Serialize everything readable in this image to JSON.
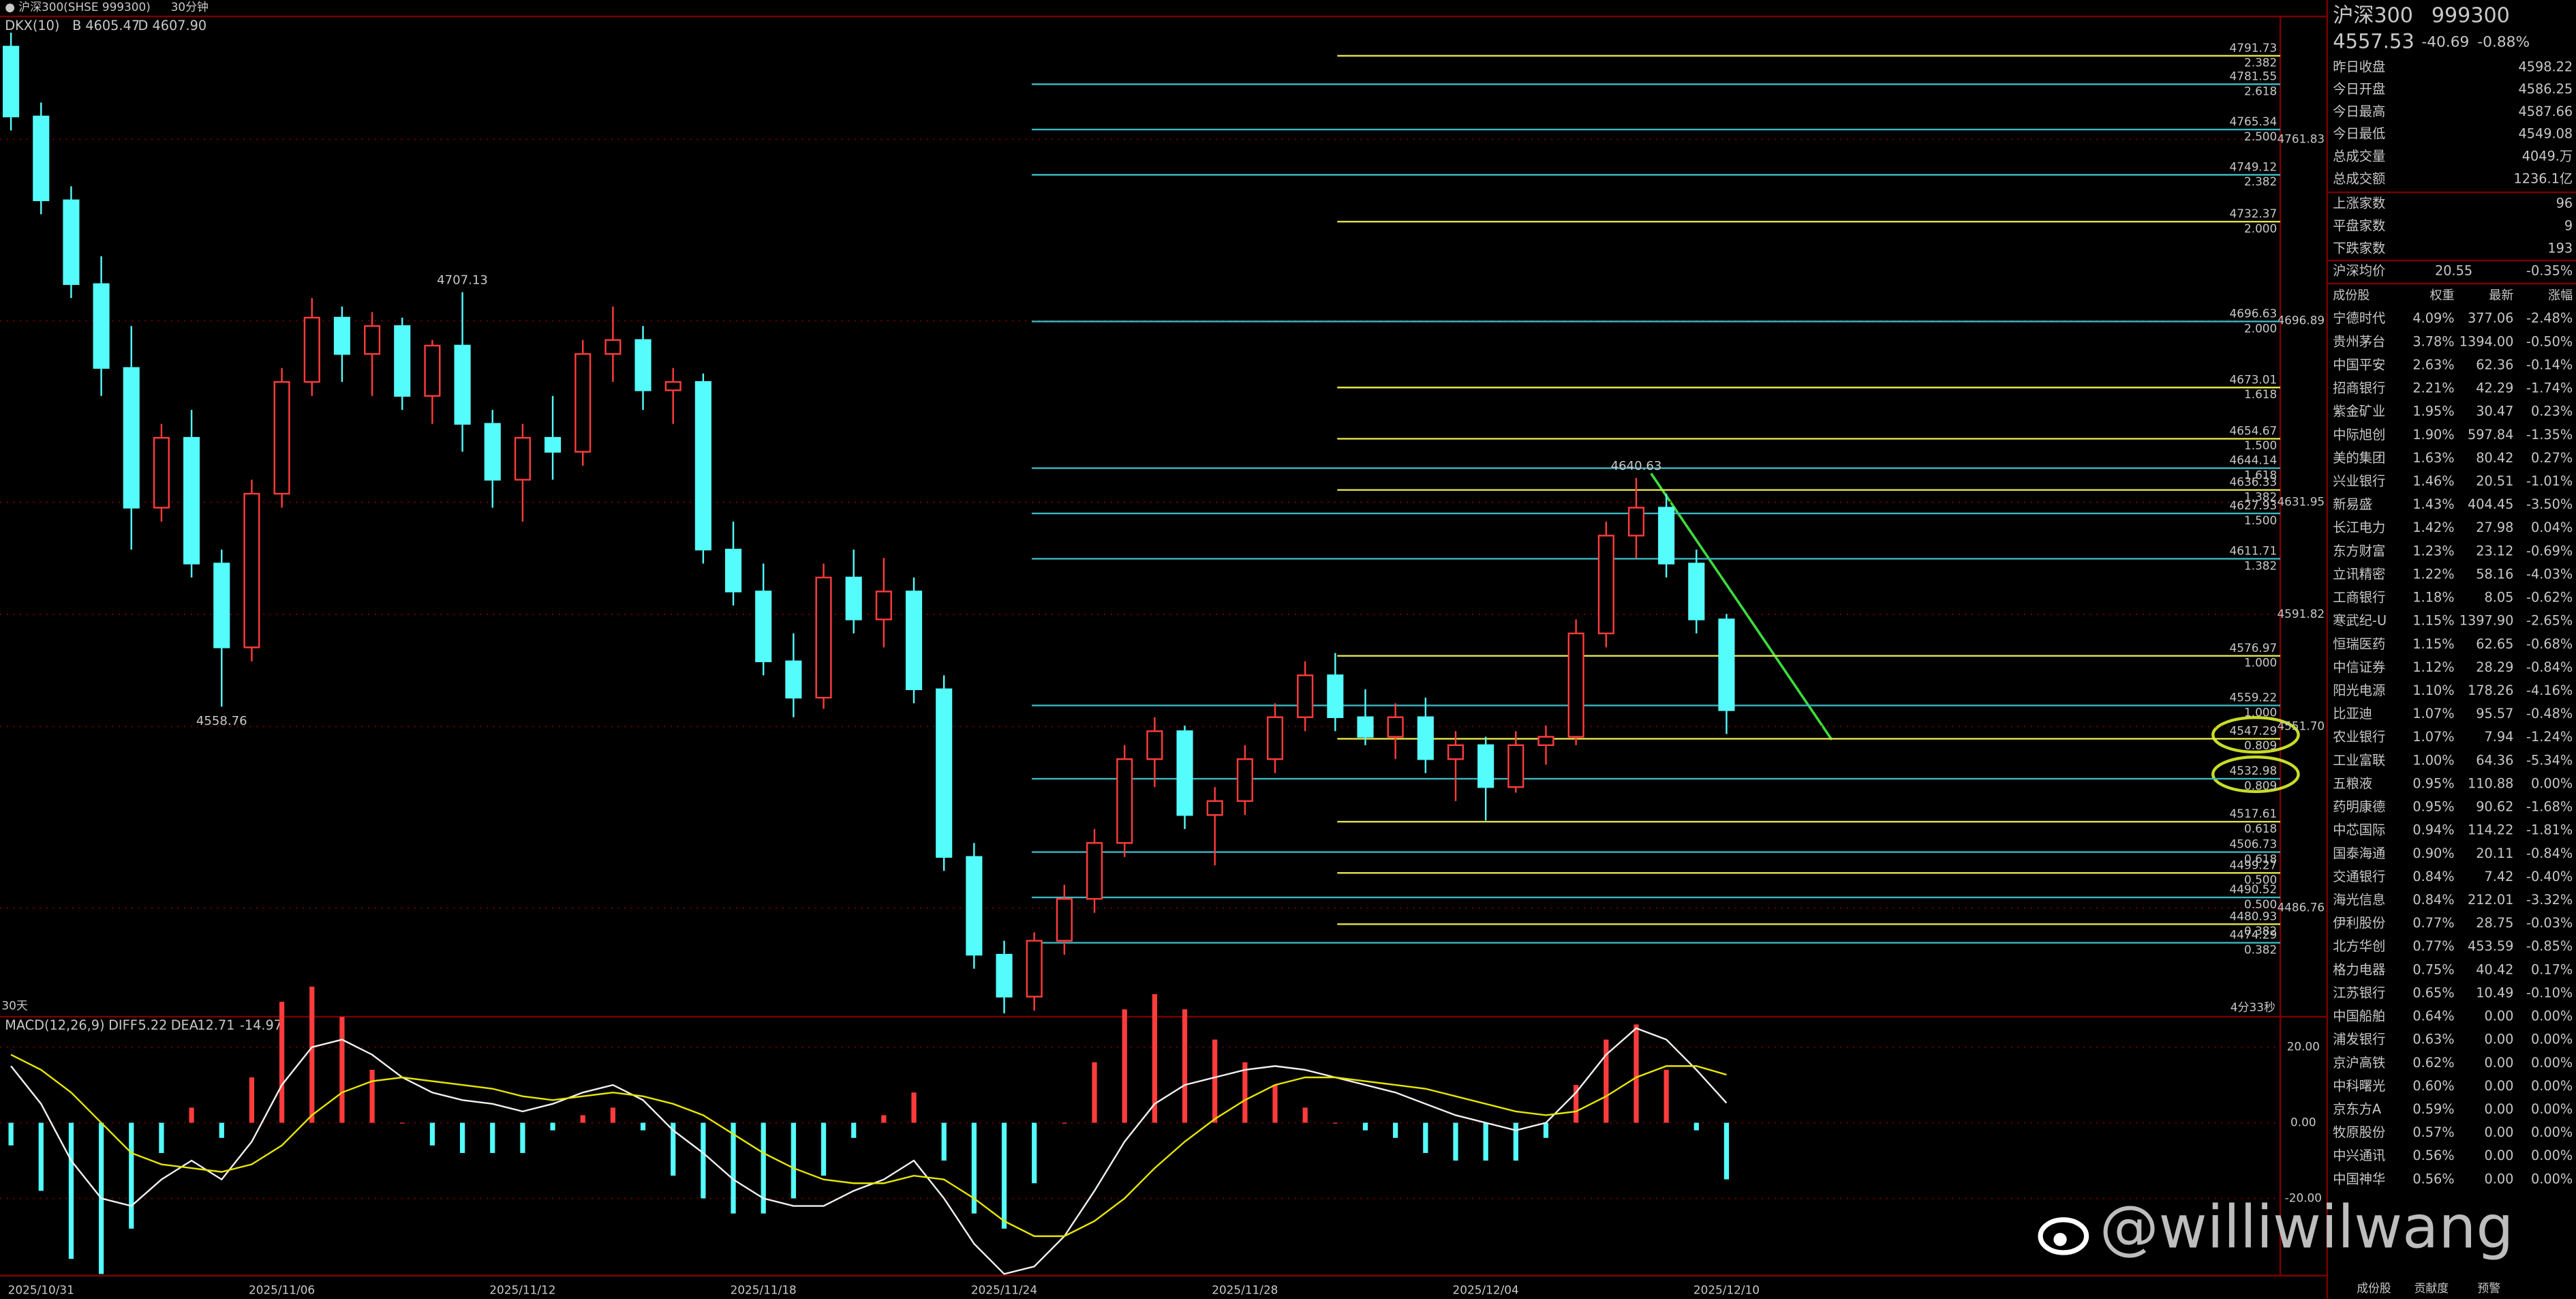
{
  "header": {
    "title": "● 沪深300(SHSE 999300)",
    "period": "30分钟"
  },
  "chart_data": [
    {
      "type": "candlestick",
      "indicator": "DKX(10)",
      "indicator_values": [
        "B 4605.47",
        "D 4607.90"
      ],
      "categories": [
        null,
        "2025/10/31",
        null,
        null,
        null,
        null,
        null,
        null,
        null,
        "2025/11/06",
        null,
        null,
        null,
        null,
        null,
        null,
        null,
        "2025/11/12",
        null,
        null,
        null,
        null,
        null,
        null,
        null,
        "2025/11/18",
        null,
        null,
        null,
        null,
        null,
        null,
        null,
        "2025/11/24",
        null,
        null,
        null,
        null,
        null,
        null,
        null,
        "2025/11/28",
        null,
        null,
        null,
        null,
        null,
        null,
        null,
        "2025/12/04",
        null,
        null,
        null,
        null,
        null,
        null,
        null,
        "2025/12/10"
      ],
      "open": [
        4795,
        4770,
        4740,
        4710,
        4680,
        4630,
        4655,
        4610,
        4580,
        4635,
        4675,
        4698,
        4685,
        4695,
        4670,
        4688,
        4660,
        4640,
        4655,
        4650,
        4685,
        4690,
        4672,
        4675,
        4615,
        4600,
        4575,
        4562,
        4605,
        4590,
        4600,
        4565,
        4505,
        4470,
        4455,
        4475,
        4490,
        4510,
        4540,
        4550,
        4520,
        4525,
        4540,
        4555,
        4570,
        4555,
        4548,
        4555,
        4540,
        4545,
        4530,
        4545,
        4548,
        4585,
        4620,
        4630,
        4610,
        4590
      ],
      "high": [
        4800,
        4775,
        4745,
        4720,
        4695,
        4660,
        4665,
        4615,
        4640,
        4680,
        4705,
        4702,
        4700,
        4698,
        4690,
        4707.13,
        4665,
        4660,
        4670,
        4690,
        4702,
        4695,
        4680,
        4678,
        4625,
        4610,
        4585,
        4610,
        4615,
        4612,
        4605,
        4570,
        4510,
        4475,
        4478,
        4495,
        4515,
        4545,
        4555,
        4552,
        4530,
        4545,
        4560,
        4575,
        4578,
        4565,
        4560,
        4562,
        4550,
        4548,
        4550,
        4552,
        4590,
        4625,
        4640.63,
        4635,
        4615,
        4592
      ],
      "low": [
        4765,
        4735,
        4705,
        4670,
        4615,
        4625,
        4605,
        4558.76,
        4575,
        4630,
        4670,
        4675,
        4670,
        4665,
        4660,
        4650,
        4630,
        4625,
        4640,
        4645,
        4675,
        4665,
        4660,
        4610,
        4595,
        4570,
        4555,
        4558,
        4585,
        4580,
        4560,
        4500,
        4465,
        4449,
        4450,
        4470,
        4485,
        4505,
        4530,
        4515,
        4502,
        4520,
        4535,
        4550,
        4550,
        4545,
        4540,
        4535,
        4525,
        4518,
        4528,
        4538,
        4545,
        4580,
        4612,
        4605,
        4585,
        4549
      ],
      "close": [
        4770,
        4740,
        4710,
        4680,
        4630,
        4655,
        4610,
        4580,
        4635,
        4675,
        4698,
        4685,
        4695,
        4670,
        4688,
        4660,
        4640,
        4655,
        4650,
        4685,
        4690,
        4672,
        4675,
        4615,
        4600,
        4575,
        4562,
        4605,
        4590,
        4600,
        4565,
        4505,
        4470,
        4455,
        4475,
        4490,
        4510,
        4540,
        4550,
        4520,
        4525,
        4540,
        4555,
        4570,
        4555,
        4548,
        4555,
        4540,
        4545,
        4530,
        4545,
        4548,
        4585,
        4620,
        4630,
        4610,
        4590,
        4557.53
      ],
      "up_color": "#ff3c3c",
      "down_color": "#54fcfc",
      "ylim": [
        4448.1,
        4805.8
      ],
      "yticks": [
        4761.83,
        4696.89,
        4631.95,
        4591.82,
        {
          "value": 4551.7,
          "label": "4551.70"
        },
        4486.76
      ],
      "grid": true,
      "fib_sets": [
        {
          "color": "#e6e64a",
          "levels": [
            {
              "value": 4791.73,
              "ratio": "2.382"
            },
            {
              "value": 4732.37,
              "ratio": "2.000"
            },
            {
              "value": 4673.01,
              "ratio": "1.618"
            },
            {
              "value": 4654.67,
              "ratio": "1.500"
            },
            {
              "value": 4636.33,
              "ratio": "1.382"
            },
            {
              "value": 4576.97,
              "ratio": "1.000"
            },
            {
              "value": 4547.29,
              "ratio": "0.809"
            },
            {
              "value": 4517.61,
              "ratio": "0.618"
            },
            {
              "value": 4499.27,
              "ratio": "0.500"
            },
            {
              "value": 4480.93,
              "ratio": "0.382"
            }
          ]
        },
        {
          "color": "#3cb8c0",
          "levels": [
            {
              "value": 4781.55,
              "ratio": "2.618"
            },
            {
              "value": 4765.34,
              "ratio": "2.500"
            },
            {
              "value": 4749.12,
              "ratio": "2.382"
            },
            {
              "value": 4696.63,
              "ratio": "2.000"
            },
            {
              "value": 4644.14,
              "ratio": "1.618"
            },
            {
              "value": 4627.93,
              "ratio": "1.500"
            },
            {
              "value": 4611.71,
              "ratio": "1.382"
            },
            {
              "value": 4559.22,
              "ratio": "1.000"
            },
            {
              "value": 4532.98,
              "ratio": "0.809"
            },
            {
              "value": 4506.73,
              "ratio": "0.618"
            },
            {
              "value": 4490.52,
              "ratio": "0.500"
            },
            {
              "value": 4474.29,
              "ratio": "0.382"
            }
          ]
        }
      ],
      "corner_label": "30天",
      "countdown": "4分33秒"
    },
    {
      "type": "macd",
      "title": "MACD(12,26,9)",
      "series": [
        {
          "name": "DIFF",
          "color": "#f0f0f0",
          "values": [
            15,
            5,
            -10,
            -20,
            -22,
            -15,
            -10,
            -15,
            -5,
            10,
            20,
            22,
            18,
            12,
            8,
            6,
            5,
            3,
            5,
            8,
            10,
            6,
            -2,
            -8,
            -15,
            -20,
            -22,
            -22,
            -18,
            -15,
            -10,
            -20,
            -32,
            -40,
            -38,
            -30,
            -18,
            -5,
            5,
            10,
            12,
            14,
            15,
            14,
            12,
            10,
            8,
            5,
            2,
            0,
            -2,
            0,
            8,
            18,
            25,
            22,
            14,
            5.22
          ]
        },
        {
          "name": "DEA",
          "color": "#e6e600",
          "values": [
            18,
            14,
            8,
            0,
            -8,
            -11,
            -12,
            -13,
            -11,
            -6,
            2,
            8,
            11,
            12,
            11,
            10,
            9,
            7,
            6,
            7,
            8,
            7,
            5,
            2,
            -3,
            -8,
            -12,
            -15,
            -16,
            -16,
            -14,
            -15,
            -20,
            -26,
            -30,
            -30,
            -26,
            -20,
            -12,
            -5,
            1,
            6,
            10,
            12,
            12,
            11,
            10,
            9,
            7,
            5,
            3,
            2,
            3,
            7,
            12,
            15,
            15,
            12.71
          ]
        }
      ],
      "histogram": {
        "up_color": "#ff3c3c",
        "down_color": "#54fcfc",
        "values": [
          -6,
          -18,
          -36,
          -40,
          -28,
          -8,
          4,
          -4,
          12,
          32,
          36,
          28,
          14,
          0,
          -6,
          -8,
          -8,
          -8,
          -2,
          2,
          4,
          -2,
          -14,
          -20,
          -24,
          -24,
          -20,
          -14,
          -4,
          2,
          8,
          -10,
          -24,
          -28,
          -16,
          0,
          16,
          30,
          34,
          30,
          22,
          16,
          10,
          4,
          0,
          -2,
          -4,
          -8,
          -10,
          -10,
          -10,
          -4,
          10,
          22,
          26,
          14,
          -2,
          -14.97
        ]
      },
      "ylim": [
        -40,
        27.39
      ],
      "yticks": [
        {
          "value": 20,
          "label": "20.00"
        },
        {
          "value": 0,
          "label": "0.00"
        },
        {
          "value": -20,
          "label": "-20.00"
        }
      ],
      "grid": true
    }
  ],
  "quote": {
    "name": "沪深300",
    "code": "999300",
    "price": 4557.53,
    "change": -40.69,
    "change_pct": "-0.88%"
  },
  "stats": [
    {
      "label": "昨日收盘",
      "value": "4598.22",
      "color": "#ffffff"
    },
    {
      "label": "今日开盘",
      "value": "4586.25",
      "color": "#00e600"
    },
    {
      "label": "今日最高",
      "value": "4587.66",
      "color": "#00e600"
    },
    {
      "label": "今日最低",
      "value": "4549.08",
      "color": "#00e600"
    },
    {
      "label": "总成交量",
      "value": "4049.万",
      "color": "#e6e600"
    },
    {
      "label": "总成交额",
      "value": "1236.1亿",
      "color": "#e6e600"
    }
  ],
  "breadth": [
    {
      "label": "上涨家数",
      "value": "96"
    },
    {
      "label": "平盘家数",
      "value": "9"
    },
    {
      "label": "下跌家数",
      "value": "193"
    }
  ],
  "average": {
    "label": "沪深均价",
    "value": "20.55",
    "change": "-0.35%"
  },
  "constituents": {
    "columns": [
      "成份股",
      "权重",
      "最新",
      "涨幅"
    ],
    "rows": [
      [
        "宁德时代",
        "4.09%",
        "377.06",
        "-2.48%"
      ],
      [
        "贵州茅台",
        "3.78%",
        "1394.00",
        "-0.50%"
      ],
      [
        "中国平安",
        "2.63%",
        "62.36",
        "-0.14%"
      ],
      [
        "招商银行",
        "2.21%",
        "42.29",
        "-1.74%"
      ],
      [
        "紫金矿业",
        "1.95%",
        "30.47",
        "0.23%"
      ],
      [
        "中际旭创",
        "1.90%",
        "597.84",
        "-1.35%"
      ],
      [
        "美的集团",
        "1.63%",
        "80.42",
        "0.27%"
      ],
      [
        "兴业银行",
        "1.46%",
        "20.51",
        "-1.01%"
      ],
      [
        "新易盛",
        "1.43%",
        "404.45",
        "-3.50%"
      ],
      [
        "长江电力",
        "1.42%",
        "27.98",
        "0.04%"
      ],
      [
        "东方财富",
        "1.23%",
        "23.12",
        "-0.69%"
      ],
      [
        "立讯精密",
        "1.22%",
        "58.16",
        "-4.03%"
      ],
      [
        "工商银行",
        "1.18%",
        "8.05",
        "-0.62%"
      ],
      [
        "寒武纪-U",
        "1.15%",
        "1397.90",
        "-2.65%"
      ],
      [
        "恒瑞医药",
        "1.15%",
        "62.65",
        "-0.68%"
      ],
      [
        "中信证券",
        "1.12%",
        "28.29",
        "-0.84%"
      ],
      [
        "阳光电源",
        "1.10%",
        "178.26",
        "-4.16%"
      ],
      [
        "比亚迪",
        "1.07%",
        "95.57",
        "-0.48%"
      ],
      [
        "农业银行",
        "1.07%",
        "7.94",
        "-1.24%"
      ],
      [
        "工业富联",
        "1.00%",
        "64.36",
        "-5.34%"
      ],
      [
        "五粮液",
        "0.95%",
        "110.88",
        "0.00%"
      ],
      [
        "药明康德",
        "0.95%",
        "90.62",
        "-1.68%"
      ],
      [
        "中芯国际",
        "0.94%",
        "114.22",
        "-1.81%"
      ],
      [
        "国泰海通",
        "0.90%",
        "20.11",
        "-0.84%"
      ],
      [
        "交通银行",
        "0.84%",
        "7.42",
        "-0.40%"
      ],
      [
        "海光信息",
        "0.84%",
        "212.01",
        "-3.32%"
      ],
      [
        "伊利股份",
        "0.77%",
        "28.75",
        "-0.03%"
      ],
      [
        "北方华创",
        "0.77%",
        "453.59",
        "-0.85%"
      ],
      [
        "格力电器",
        "0.75%",
        "40.42",
        "0.17%"
      ],
      [
        "江苏银行",
        "0.65%",
        "10.49",
        "-0.10%"
      ],
      [
        "中国船舶",
        "0.64%",
        "0.00",
        "0.00%"
      ],
      [
        "浦发银行",
        "0.63%",
        "0.00",
        "0.00%"
      ],
      [
        "京沪高铁",
        "0.62%",
        "0.00",
        "0.00%"
      ],
      [
        "中科曙光",
        "0.60%",
        "0.00",
        "0.00%"
      ],
      [
        "京东方A",
        "0.59%",
        "0.00",
        "0.00%"
      ],
      [
        "牧原股份",
        "0.57%",
        "0.00",
        "0.00%"
      ],
      [
        "中兴通讯",
        "0.56%",
        "0.00",
        "0.00%"
      ],
      [
        "中国神华",
        "0.56%",
        "0.00",
        "0.00%"
      ]
    ]
  },
  "tabs": [
    "成份股",
    "贡献度",
    "预警"
  ],
  "watermark": "@williwilwang"
}
